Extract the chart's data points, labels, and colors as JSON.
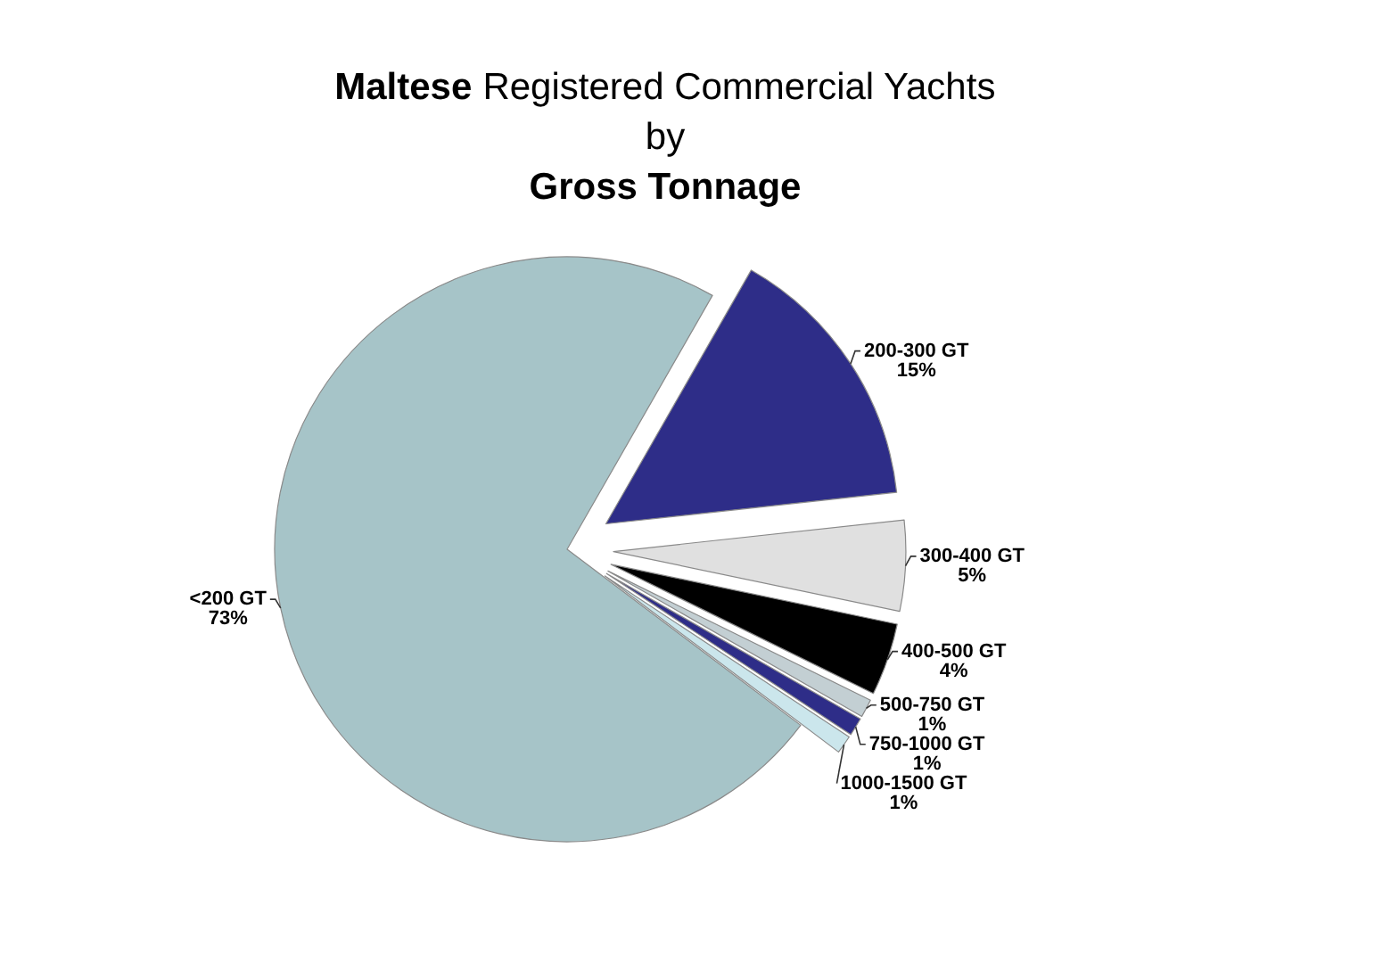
{
  "chart_data": {
    "type": "pie",
    "title": "Maltese Registered Commercial Yachts\nby\nGross Tonnage",
    "categories": [
      "<200 GT",
      "200-300 GT",
      "300-400 GT",
      "400-500 GT",
      "500-750 GT",
      "750-1000 GT",
      "1000-1500 GT"
    ],
    "values": [
      73,
      15,
      5,
      4,
      1,
      1,
      1
    ],
    "value_labels": [
      "73%",
      "15%",
      "5%",
      "4%",
      "1%",
      "1%",
      "1%"
    ],
    "colors": [
      "#a6c4c8",
      "#2e2d88",
      "#e0e0e0",
      "#000000",
      "#c3cfd3",
      "#2e2d88",
      "#cbe6ec"
    ],
    "legend": false
  }
}
